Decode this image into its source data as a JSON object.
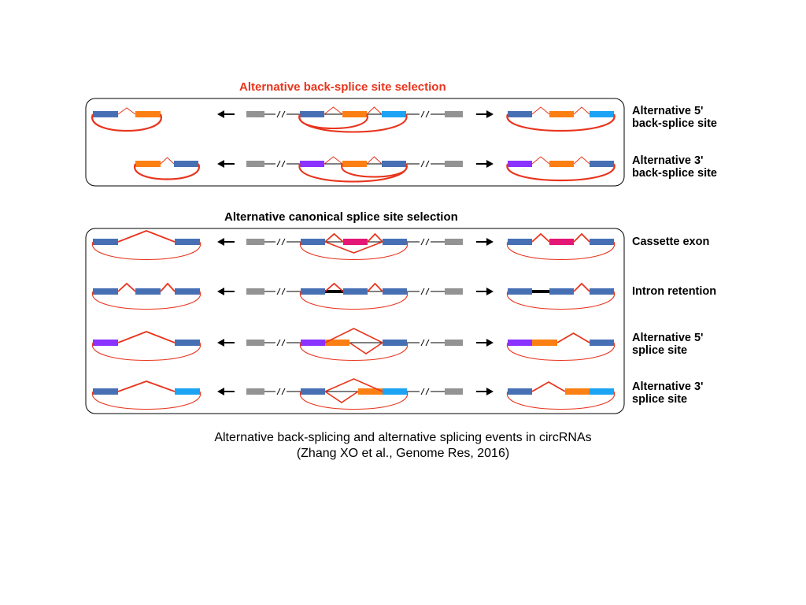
{
  "colors": {
    "blue": "#4770b4",
    "orange": "#fb7f13",
    "cyan": "#1da3f3",
    "purple": "#8a32ff",
    "magenta": "#e41776",
    "gray": "#939393",
    "red": "#e8341c",
    "black": "#000000"
  },
  "section_backsplice": {
    "title": "Alternative back-splice site selection",
    "rows": [
      {
        "label_line1": "Alternative 5'",
        "label_line2": "back-splice site"
      },
      {
        "label_line1": "Alternative 3'",
        "label_line2": "back-splice site"
      }
    ]
  },
  "section_canonical": {
    "title": "Alternative canonical splice site selection",
    "rows": [
      {
        "label_line1": "Cassette exon",
        "label_line2": ""
      },
      {
        "label_line1": "Intron retention",
        "label_line2": ""
      },
      {
        "label_line1": "Alternative 5'",
        "label_line2": "splice site"
      },
      {
        "label_line1": "Alternative 3'",
        "label_line2": "splice site"
      }
    ]
  },
  "caption": {
    "line1": "Alternative back-splicing and alternative splicing events in circRNAs",
    "line2": "(Zhang XO et al., Genome Res, 2016)"
  }
}
